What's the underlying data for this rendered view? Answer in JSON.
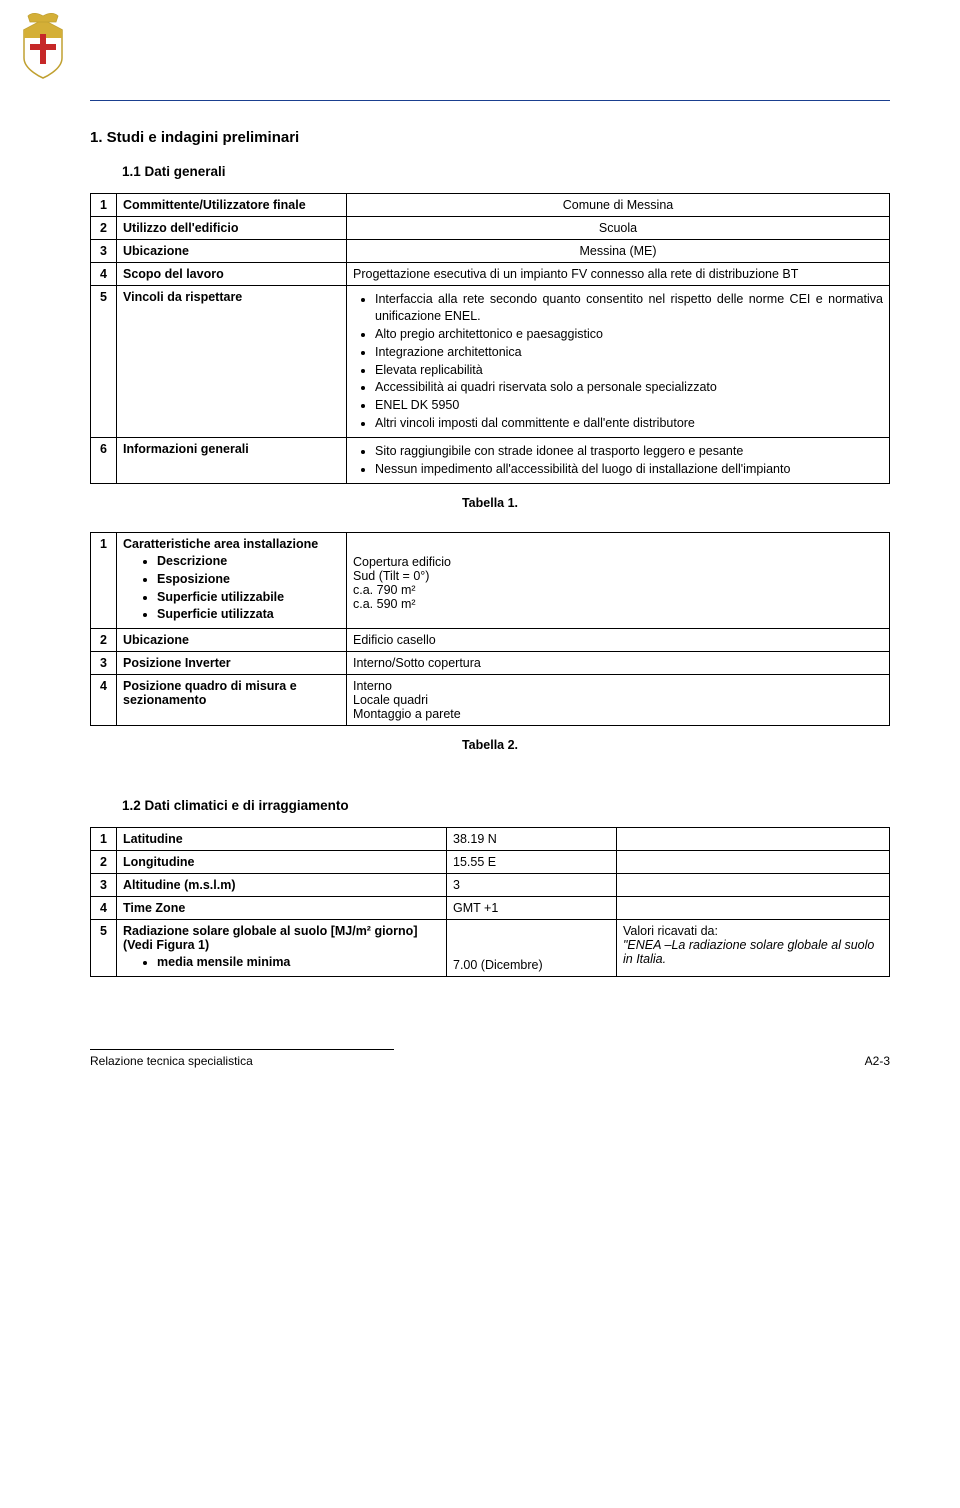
{
  "header": {
    "logo_alt": "Comune di Messina crest"
  },
  "section1": {
    "heading": "1.   Studi e indagini preliminari",
    "sub1": {
      "heading": "1.1   Dati generali",
      "table": {
        "rows": [
          {
            "n": "1",
            "label": "Committente/Utilizzatore finale",
            "value": "Comune di Messina"
          },
          {
            "n": "2",
            "label": "Utilizzo dell'edificio",
            "value": "Scuola"
          },
          {
            "n": "3",
            "label": "Ubicazione",
            "value": "Messina (ME)"
          },
          {
            "n": "4",
            "label": "Scopo del lavoro",
            "value": "Progettazione esecutiva di un impianto FV connesso alla rete di distribuzione BT"
          }
        ],
        "row5": {
          "n": "5",
          "label": "Vincoli da rispettare",
          "items": [
            "Interfaccia alla rete secondo quanto consentito nel rispetto delle norme CEI e normativa unificazione ENEL.",
            "Alto pregio architettonico e paesaggistico",
            "Integrazione architettonica",
            "Elevata replicabilità",
            "Accessibilità ai quadri riservata solo a personale specializzato",
            "ENEL DK 5950",
            "Altri vincoli imposti dal committente e dall'ente distributore"
          ]
        },
        "row6": {
          "n": "6",
          "label": "Informazioni generali",
          "items": [
            "Sito raggiungibile con strade idonee al trasporto leggero e pesante",
            "Nessun impedimento all'accessibilità del luogo di installazione dell'impianto"
          ]
        }
      },
      "caption1": "Tabella 1.",
      "table2": {
        "row1": {
          "n": "1",
          "label": "Caratteristiche area installazione",
          "sub_labels": [
            "Descrizione",
            "Esposizione",
            "Superficie utilizzabile",
            "Superficie utilizzata"
          ],
          "sub_values": [
            "Copertura edificio",
            "Sud (Tilt = 0°)",
            "c.a. 790 m²",
            "c.a. 590 m²"
          ]
        },
        "rows": [
          {
            "n": "2",
            "label": "Ubicazione",
            "value": "Edificio casello"
          },
          {
            "n": "3",
            "label": "Posizione Inverter",
            "value": "Interno/Sotto copertura"
          }
        ],
        "row4": {
          "n": "4",
          "label": "Posizione quadro di misura e sezionamento",
          "lines": [
            "Interno",
            "Locale quadri",
            "Montaggio a parete"
          ]
        }
      },
      "caption2": "Tabella 2."
    },
    "sub2": {
      "heading": "1.2   Dati climatici e di irraggiamento",
      "table": {
        "rows": [
          {
            "n": "1",
            "label": "Latitudine",
            "val": "38.19 N",
            "note": ""
          },
          {
            "n": "2",
            "label": "Longitudine",
            "val": "15.55 E",
            "note": ""
          },
          {
            "n": "3",
            "label": "Altitudine (m.s.l.m)",
            "val": "3",
            "note": ""
          },
          {
            "n": "4",
            "label": "Time Zone",
            "val": "GMT +1",
            "note": ""
          }
        ],
        "row5": {
          "n": "5",
          "label_pre": "Radiazione solare globale al suolo [MJ/m² giorno] (Vedi Figura 1)",
          "sub_label": "media mensile minima",
          "val": "7.00 (Dicembre)",
          "note_pre": "Valori ricavati da:",
          "note_ital": "\"ENEA –La radiazione solare globale al suolo in Italia."
        }
      }
    }
  },
  "footer": {
    "text": "Relazione tecnica specialistica",
    "page": "A2-3"
  },
  "colors": {
    "rule": "#1a3f8f",
    "text": "#000000",
    "bg": "#ffffff"
  }
}
